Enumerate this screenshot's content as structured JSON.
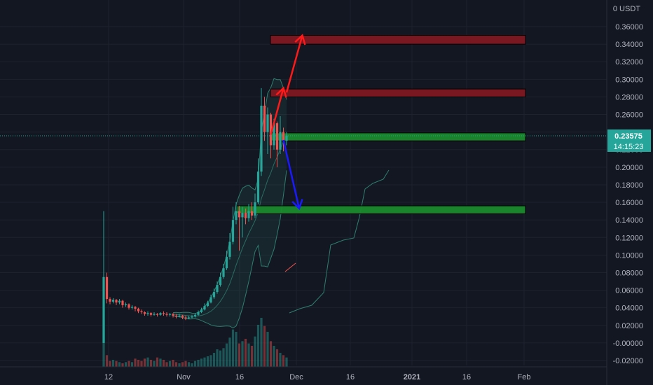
{
  "chart_data": {
    "type": "candlestick",
    "currency": "USDT",
    "price_axis": {
      "min": -0.03,
      "max": 0.38,
      "ticks": [
        "0.36000",
        "0.34000",
        "0.32000",
        "0.30000",
        "0.28000",
        "0.26000",
        "0.24000",
        "0.22000",
        "0.20000",
        "0.18000",
        "0.16000",
        "0.14000",
        "0.12000",
        "0.10000",
        "0.08000",
        "0.06000",
        "0.04000",
        "0.02000",
        "-0.00000",
        "-0.02000"
      ],
      "tick_values": [
        0.36,
        0.34,
        0.32,
        0.3,
        0.28,
        0.26,
        0.24,
        0.22,
        0.2,
        0.18,
        0.16,
        0.14,
        0.12,
        0.1,
        0.08,
        0.06,
        0.04,
        0.02,
        0.0,
        -0.02
      ],
      "top_label": "0 USDT"
    },
    "time_axis": {
      "labels": [
        "12",
        "Nov",
        "16",
        "Dec",
        "16",
        "2021",
        "16",
        "Feb"
      ],
      "bold": [
        false,
        false,
        false,
        false,
        false,
        true,
        false,
        false
      ]
    },
    "last_price": {
      "value": 0.23575,
      "label": "0.23575",
      "countdown": "14:15:23"
    },
    "colors": {
      "up": "#26a69a",
      "down": "#ef5350",
      "zone_red": "#801922",
      "zone_green": "#1b8a2e",
      "arrow_red": "#ff1a1a",
      "arrow_blue": "#1a1aff",
      "band": "#2e7d6f"
    },
    "zones": [
      {
        "type": "resistance",
        "top": 0.35,
        "bottom": 0.34
      },
      {
        "type": "resistance",
        "top": 0.289,
        "bottom": 0.28
      },
      {
        "type": "support",
        "top": 0.239,
        "bottom": 0.23
      },
      {
        "type": "support",
        "top": 0.156,
        "bottom": 0.147
      }
    ],
    "candles": [
      [
        0.0,
        0.075,
        0.15,
        0.0
      ],
      [
        0.075,
        0.05,
        0.08,
        0.045
      ],
      [
        0.05,
        0.047,
        0.052,
        0.044
      ],
      [
        0.047,
        0.049,
        0.051,
        0.045
      ],
      [
        0.049,
        0.046,
        0.05,
        0.043
      ],
      [
        0.046,
        0.048,
        0.05,
        0.044
      ],
      [
        0.048,
        0.043,
        0.049,
        0.04
      ],
      [
        0.043,
        0.044,
        0.046,
        0.041
      ],
      [
        0.044,
        0.04,
        0.045,
        0.038
      ],
      [
        0.04,
        0.041,
        0.043,
        0.038
      ],
      [
        0.041,
        0.039,
        0.042,
        0.036
      ],
      [
        0.039,
        0.036,
        0.04,
        0.034
      ],
      [
        0.036,
        0.035,
        0.038,
        0.033
      ],
      [
        0.035,
        0.033,
        0.036,
        0.031
      ],
      [
        0.033,
        0.034,
        0.036,
        0.031
      ],
      [
        0.034,
        0.032,
        0.035,
        0.03
      ],
      [
        0.032,
        0.033,
        0.035,
        0.031
      ],
      [
        0.033,
        0.032,
        0.034,
        0.03
      ],
      [
        0.032,
        0.034,
        0.035,
        0.031
      ],
      [
        0.034,
        0.033,
        0.036,
        0.031
      ],
      [
        0.033,
        0.032,
        0.035,
        0.03
      ],
      [
        0.032,
        0.033,
        0.034,
        0.03
      ],
      [
        0.033,
        0.031,
        0.034,
        0.029
      ],
      [
        0.031,
        0.03,
        0.033,
        0.028
      ],
      [
        0.03,
        0.031,
        0.033,
        0.029
      ],
      [
        0.031,
        0.029,
        0.032,
        0.027
      ],
      [
        0.029,
        0.028,
        0.031,
        0.026
      ],
      [
        0.028,
        0.029,
        0.031,
        0.027
      ],
      [
        0.029,
        0.03,
        0.032,
        0.028
      ],
      [
        0.03,
        0.032,
        0.034,
        0.029
      ],
      [
        0.032,
        0.035,
        0.037,
        0.031
      ],
      [
        0.035,
        0.038,
        0.04,
        0.034
      ],
      [
        0.038,
        0.042,
        0.045,
        0.037
      ],
      [
        0.042,
        0.046,
        0.048,
        0.041
      ],
      [
        0.046,
        0.052,
        0.055,
        0.045
      ],
      [
        0.052,
        0.058,
        0.062,
        0.05
      ],
      [
        0.058,
        0.066,
        0.07,
        0.056
      ],
      [
        0.066,
        0.075,
        0.08,
        0.064
      ],
      [
        0.075,
        0.085,
        0.09,
        0.073
      ],
      [
        0.085,
        0.098,
        0.105,
        0.083
      ],
      [
        0.098,
        0.115,
        0.125,
        0.095
      ],
      [
        0.115,
        0.14,
        0.155,
        0.112
      ],
      [
        0.14,
        0.15,
        0.16,
        0.135
      ],
      [
        0.15,
        0.143,
        0.156,
        0.105
      ],
      [
        0.143,
        0.148,
        0.155,
        0.12
      ],
      [
        0.148,
        0.142,
        0.153,
        0.135
      ],
      [
        0.142,
        0.15,
        0.158,
        0.138
      ],
      [
        0.15,
        0.145,
        0.16,
        0.14
      ],
      [
        0.145,
        0.16,
        0.17,
        0.142
      ],
      [
        0.16,
        0.195,
        0.21,
        0.158
      ],
      [
        0.195,
        0.27,
        0.29,
        0.19
      ],
      [
        0.27,
        0.24,
        0.28,
        0.23
      ],
      [
        0.24,
        0.26,
        0.268,
        0.215
      ],
      [
        0.26,
        0.225,
        0.262,
        0.21
      ],
      [
        0.225,
        0.25,
        0.255,
        0.22
      ],
      [
        0.25,
        0.22,
        0.252,
        0.2
      ],
      [
        0.22,
        0.24,
        0.258,
        0.215
      ],
      [
        0.24,
        0.23,
        0.245,
        0.218
      ],
      [
        0.23,
        0.236,
        0.24,
        0.225
      ]
    ],
    "volumes": [
      40,
      10,
      5,
      6,
      5,
      4,
      3,
      4,
      5,
      4,
      7,
      6,
      5,
      7,
      8,
      6,
      5,
      8,
      7,
      6,
      4,
      5,
      6,
      4,
      3,
      4,
      5,
      4,
      3,
      5,
      6,
      7,
      8,
      9,
      10,
      12,
      15,
      14,
      16,
      20,
      25,
      32,
      30,
      20,
      22,
      24,
      20,
      18,
      26,
      36,
      42,
      35,
      30,
      22,
      18,
      15,
      12,
      10,
      8
    ],
    "drawings": {
      "red_arrow_1": {
        "from": [
          53,
          0.237
        ],
        "to": [
          57,
          0.29
        ]
      },
      "red_arrow_2": {
        "from": [
          58,
          0.285
        ],
        "to": [
          63,
          0.35
        ]
      },
      "blue_arrow": {
        "from": [
          57,
          0.231
        ],
        "to": [
          62,
          0.153
        ]
      }
    }
  }
}
